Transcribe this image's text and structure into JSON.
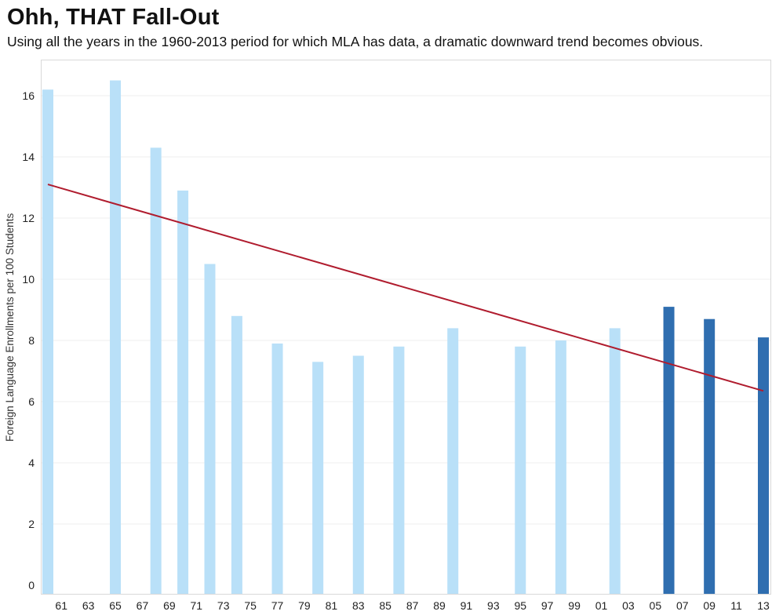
{
  "title": "Ohh, THAT Fall-Out",
  "subtitle": "Using all the years in the 1960-2013 period for which MLA has data, a dramatic downward trend becomes obvious.",
  "chart_data": {
    "type": "bar",
    "ylabel": "Foreign Language Enrollments per 100 Students",
    "xlabel": "",
    "ylim": [
      0,
      17
    ],
    "yticks": [
      0,
      2,
      4,
      6,
      8,
      10,
      12,
      14,
      16
    ],
    "grid": true,
    "x_start_year": 1960,
    "x_end_year": 2013,
    "xtick_labels": [
      "61",
      "63",
      "65",
      "67",
      "69",
      "71",
      "73",
      "75",
      "77",
      "79",
      "81",
      "83",
      "85",
      "87",
      "89",
      "91",
      "93",
      "95",
      "97",
      "99",
      "01",
      "03",
      "05",
      "07",
      "09",
      "11",
      "13"
    ],
    "bars": [
      {
        "year": 1960,
        "value": 16.2,
        "color": "#b9e0f8"
      },
      {
        "year": 1965,
        "value": 16.5,
        "color": "#b9e0f8"
      },
      {
        "year": 1968,
        "value": 14.3,
        "color": "#b9e0f8"
      },
      {
        "year": 1970,
        "value": 12.9,
        "color": "#b9e0f8"
      },
      {
        "year": 1972,
        "value": 10.5,
        "color": "#b9e0f8"
      },
      {
        "year": 1974,
        "value": 8.8,
        "color": "#b9e0f8"
      },
      {
        "year": 1977,
        "value": 7.9,
        "color": "#b9e0f8"
      },
      {
        "year": 1980,
        "value": 7.3,
        "color": "#b9e0f8"
      },
      {
        "year": 1983,
        "value": 7.5,
        "color": "#b9e0f8"
      },
      {
        "year": 1986,
        "value": 7.8,
        "color": "#b9e0f8"
      },
      {
        "year": 1990,
        "value": 8.4,
        "color": "#b9e0f8"
      },
      {
        "year": 1995,
        "value": 7.8,
        "color": "#b9e0f8"
      },
      {
        "year": 1998,
        "value": 8.0,
        "color": "#b9e0f8"
      },
      {
        "year": 2002,
        "value": 8.4,
        "color": "#b9e0f8"
      },
      {
        "year": 2006,
        "value": 9.1,
        "color": "#2f6eb0"
      },
      {
        "year": 2009,
        "value": 8.7,
        "color": "#2f6eb0"
      },
      {
        "year": 2013,
        "value": 8.1,
        "color": "#2f6eb0"
      }
    ],
    "trend_line": {
      "start": {
        "year": 1960,
        "value": 13.1
      },
      "end": {
        "year": 2013,
        "value": 6.35
      },
      "color": "#b01c2e"
    }
  }
}
